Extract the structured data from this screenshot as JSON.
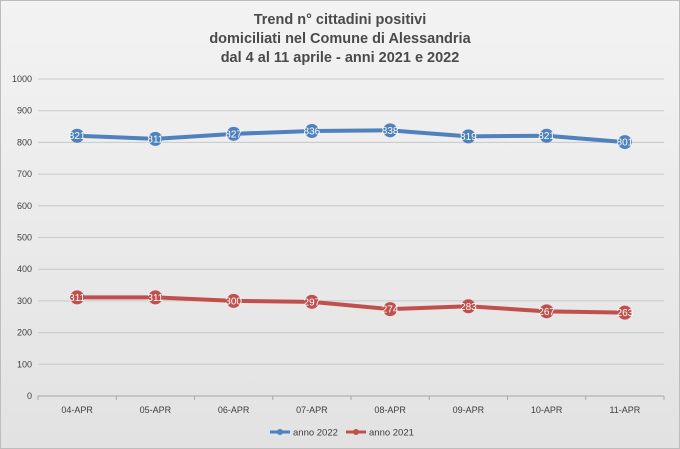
{
  "chart_data": {
    "type": "line",
    "title_lines": [
      "Trend n° cittadini positivi",
      "domiciliati nel Comune di Alessandria",
      "dal 4 al 11 aprile - anni 2021 e 2022"
    ],
    "xlabel": "",
    "ylabel": "",
    "categories": [
      "04-APR",
      "05-APR",
      "06-APR",
      "07-APR",
      "08-APR",
      "09-APR",
      "10-APR",
      "11-APR"
    ],
    "ylim": [
      0,
      1000
    ],
    "yticks": [
      "0",
      "100",
      "200",
      "300",
      "400",
      "500",
      "600",
      "700",
      "800",
      "900",
      "1000"
    ],
    "grid": true,
    "legend_position": "bottom",
    "series": [
      {
        "name": "anno 2022",
        "color": "#4f81bd",
        "values": [
          821,
          811,
          827,
          836,
          838,
          819,
          821,
          801
        ],
        "labels": [
          "821",
          "811",
          "827",
          "836",
          "838",
          "819",
          "821",
          "801"
        ]
      },
      {
        "name": "anno 2021",
        "color": "#c0504d",
        "values": [
          311,
          311,
          300,
          297,
          274,
          283,
          267,
          263
        ],
        "labels": [
          "311",
          "311",
          "300",
          "297",
          "274",
          "283",
          "267",
          "263"
        ]
      }
    ],
    "background": "#ececec",
    "gridline_color": "#c8c8c8"
  }
}
